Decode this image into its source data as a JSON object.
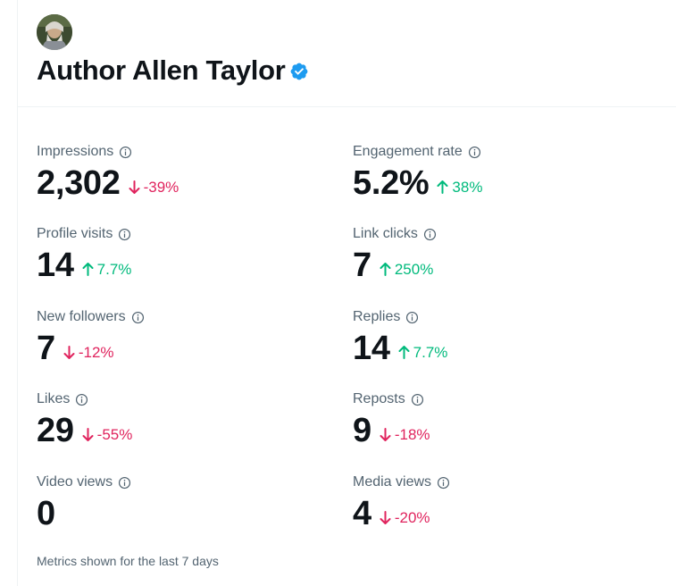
{
  "profile": {
    "name": "Author Allen Taylor",
    "verified": true,
    "verified_color": "#1d9bf0"
  },
  "colors": {
    "positive": "#00ba7c",
    "negative": "#e0245e",
    "label": "#536471"
  },
  "metrics": [
    {
      "label": "Impressions",
      "value": "2,302",
      "change": "-39%",
      "direction": "down"
    },
    {
      "label": "Engagement rate",
      "value": "5.2%",
      "change": "38%",
      "direction": "up"
    },
    {
      "label": "Profile visits",
      "value": "14",
      "change": "7.7%",
      "direction": "up"
    },
    {
      "label": "Link clicks",
      "value": "7",
      "change": "250%",
      "direction": "up"
    },
    {
      "label": "New followers",
      "value": "7",
      "change": "-12%",
      "direction": "down"
    },
    {
      "label": "Replies",
      "value": "14",
      "change": "7.7%",
      "direction": "up"
    },
    {
      "label": "Likes",
      "value": "29",
      "change": "-55%",
      "direction": "down"
    },
    {
      "label": "Reposts",
      "value": "9",
      "change": "-18%",
      "direction": "down"
    },
    {
      "label": "Video views",
      "value": "0",
      "change": "",
      "direction": "none"
    },
    {
      "label": "Media views",
      "value": "4",
      "change": "-20%",
      "direction": "down"
    }
  ],
  "footer": {
    "note": "Metrics shown for the last 7 days"
  }
}
